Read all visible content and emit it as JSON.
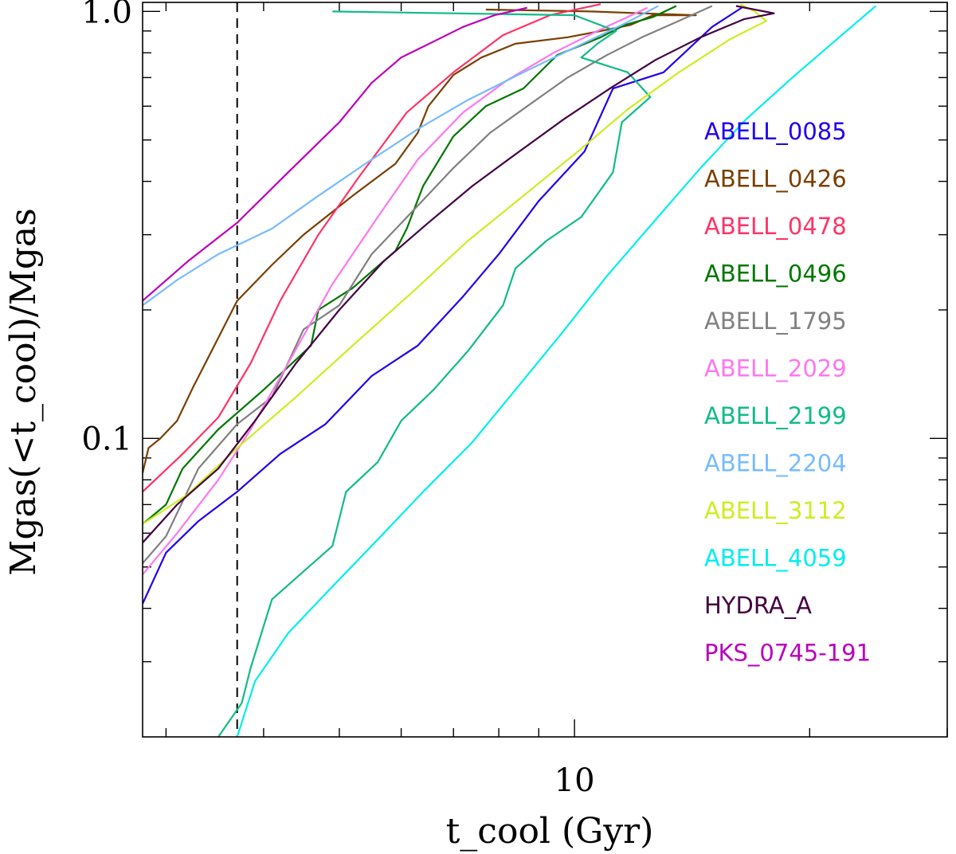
{
  "chart_data": {
    "type": "line",
    "title": "",
    "xlabel": "t_cool (Gyr)",
    "ylabel": "Mgas(<t_cool)/Mgas",
    "xscale": "log",
    "yscale": "log",
    "xlim": [
      2.8,
      30
    ],
    "ylim": [
      0.02,
      1.05
    ],
    "x_tick_labels": [
      {
        "value": 10,
        "label": "10"
      }
    ],
    "y_tick_labels": [
      {
        "value": 0.1,
        "label": "0.1"
      },
      {
        "value": 1.0,
        "label": "1.0"
      }
    ],
    "reference_line": {
      "x": 3.7,
      "style": "dashed",
      "color": "#000000"
    },
    "legend_placement": "right",
    "series": [
      {
        "name": "ABELL_0085",
        "color": "#2200EE",
        "x": [
          2.8,
          3.0,
          3.3,
          3.7,
          4.2,
          4.8,
          5.5,
          6.3,
          7.2,
          8.0,
          9.0,
          10.3,
          11.2,
          13.0,
          15.0,
          16.5
        ],
        "y": [
          0.041,
          0.054,
          0.064,
          0.075,
          0.092,
          0.108,
          0.14,
          0.165,
          0.215,
          0.27,
          0.36,
          0.47,
          0.66,
          0.72,
          0.92,
          1.03
        ]
      },
      {
        "name": "ABELL_0426",
        "color": "#7A3F00",
        "x": [
          2.8,
          2.85,
          2.95,
          3.1,
          3.25,
          3.4,
          3.7,
          4.1,
          4.5,
          5.2,
          5.9,
          6.3,
          6.5,
          7.0,
          7.6,
          8.4,
          9.8,
          10.8,
          11.8,
          12.6,
          14.3,
          12.2,
          10.5,
          7.7
        ],
        "y": [
          0.083,
          0.095,
          0.1,
          0.11,
          0.132,
          0.155,
          0.21,
          0.255,
          0.3,
          0.37,
          0.44,
          0.52,
          0.6,
          0.71,
          0.78,
          0.84,
          0.87,
          0.9,
          0.93,
          0.98,
          0.98,
          0.99,
          1.0,
          1.01
        ]
      },
      {
        "name": "ABELL_0478",
        "color": "#FF3366",
        "x": [
          2.8,
          3.15,
          3.5,
          3.85,
          4.2,
          4.7,
          5.3,
          6.1,
          7.0,
          8.1,
          9.3,
          10.8
        ],
        "y": [
          0.075,
          0.092,
          0.112,
          0.15,
          0.21,
          0.3,
          0.41,
          0.58,
          0.72,
          0.88,
          0.98,
          1.04
        ]
      },
      {
        "name": "ABELL_0496",
        "color": "#007700",
        "x": [
          2.8,
          3.0,
          3.15,
          3.5,
          4.0,
          4.6,
          4.7,
          5.2,
          5.9,
          6.1,
          6.4,
          7.0,
          7.7,
          8.6,
          9.5,
          10.8,
          11.6,
          12.6,
          13.5
        ],
        "y": [
          0.063,
          0.07,
          0.085,
          0.105,
          0.13,
          0.165,
          0.2,
          0.225,
          0.275,
          0.31,
          0.39,
          0.51,
          0.6,
          0.66,
          0.79,
          0.87,
          0.93,
          0.97,
          1.03
        ]
      },
      {
        "name": "ABELL_1795",
        "color": "#808080",
        "x": [
          2.8,
          3.0,
          3.3,
          3.7,
          4.1,
          4.5,
          5.0,
          5.5,
          6.2,
          7.0,
          7.8,
          8.7,
          9.8,
          11.0,
          12.2,
          13.6,
          15.0
        ],
        "y": [
          0.051,
          0.059,
          0.085,
          0.108,
          0.125,
          0.18,
          0.205,
          0.27,
          0.34,
          0.43,
          0.52,
          0.6,
          0.7,
          0.79,
          0.87,
          0.95,
          1.03
        ]
      },
      {
        "name": "ABELL_2029",
        "color": "#FF77EE",
        "x": [
          2.8,
          3.1,
          3.5,
          3.85,
          4.3,
          4.9,
          5.6,
          6.3,
          7.2,
          8.2,
          9.4,
          10.7,
          12.4
        ],
        "y": [
          0.048,
          0.06,
          0.08,
          0.105,
          0.15,
          0.23,
          0.33,
          0.45,
          0.58,
          0.69,
          0.8,
          0.9,
          1.02
        ]
      },
      {
        "name": "ABELL_2199",
        "color": "#11BB88",
        "x": [
          3.5,
          3.75,
          3.85,
          4.1,
          4.9,
          5.1,
          5.6,
          6.0,
          6.6,
          7.3,
          8.1,
          8.4,
          9.2,
          10.2,
          11.2,
          11.5,
          12.5,
          11.7,
          10.2,
          10.7,
          11.3,
          10.0,
          4.9
        ],
        "y": [
          0.02,
          0.024,
          0.029,
          0.042,
          0.056,
          0.075,
          0.088,
          0.11,
          0.13,
          0.16,
          0.205,
          0.25,
          0.29,
          0.33,
          0.42,
          0.55,
          0.63,
          0.72,
          0.78,
          0.84,
          0.9,
          0.98,
          1.0
        ]
      },
      {
        "name": "ABELL_2204",
        "color": "#77BBFF",
        "x": [
          2.8,
          3.1,
          3.5,
          4.1,
          4.7,
          5.4,
          6.3,
          7.3,
          8.6,
          10.1,
          11.5,
          12.8
        ],
        "y": [
          0.205,
          0.235,
          0.27,
          0.31,
          0.37,
          0.44,
          0.53,
          0.62,
          0.72,
          0.83,
          0.93,
          1.03
        ]
      },
      {
        "name": "ABELL_3112",
        "color": "#CCEE22",
        "x": [
          2.8,
          3.2,
          3.7,
          4.4,
          5.2,
          6.2,
          7.3,
          8.6,
          10.1,
          11.7,
          13.6,
          15.8,
          17.6,
          17.0,
          16.3
        ],
        "y": [
          0.063,
          0.074,
          0.095,
          0.125,
          0.165,
          0.22,
          0.29,
          0.37,
          0.47,
          0.59,
          0.72,
          0.86,
          0.95,
          1.0,
          1.04
        ]
      },
      {
        "name": "ABELL_4059",
        "color": "#00EEEE",
        "x": [
          3.7,
          3.9,
          4.3,
          4.9,
          5.6,
          6.4,
          7.4,
          8.4,
          9.6,
          11.0,
          12.6,
          14.5,
          16.6,
          19.0,
          21.5,
          24.3
        ],
        "y": [
          0.02,
          0.027,
          0.035,
          0.045,
          0.058,
          0.075,
          0.098,
          0.13,
          0.175,
          0.24,
          0.32,
          0.43,
          0.56,
          0.7,
          0.85,
          1.03
        ]
      },
      {
        "name": "HYDRA_A",
        "color": "#440044",
        "x": [
          2.8,
          3.1,
          3.5,
          3.9,
          4.4,
          5.0,
          5.7,
          6.5,
          7.4,
          8.5,
          9.7,
          11.1,
          12.7,
          14.5,
          16.5,
          18.0,
          16.1
        ],
        "y": [
          0.057,
          0.07,
          0.085,
          0.11,
          0.15,
          0.2,
          0.26,
          0.32,
          0.39,
          0.47,
          0.56,
          0.66,
          0.77,
          0.87,
          0.96,
          0.99,
          1.03
        ]
      },
      {
        "name": "PKS_0745-191",
        "color": "#BB00BB",
        "x": [
          2.8,
          3.2,
          3.7,
          4.3,
          5.0,
          5.5,
          6.0,
          6.6,
          7.2,
          7.9,
          8.7
        ],
        "y": [
          0.21,
          0.26,
          0.32,
          0.42,
          0.55,
          0.68,
          0.78,
          0.85,
          0.92,
          0.98,
          1.02
        ]
      }
    ]
  }
}
